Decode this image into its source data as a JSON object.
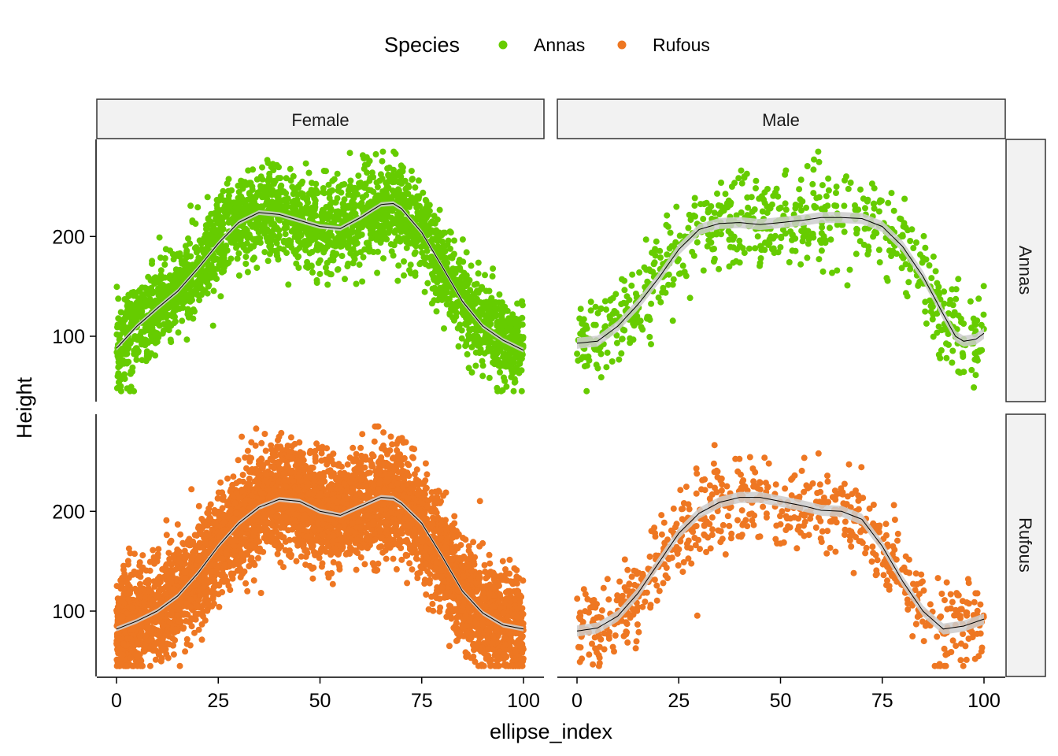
{
  "chart_data": {
    "type": "scatter",
    "title": "",
    "xlabel": "ellipse_index",
    "ylabel": "Height",
    "xlim": [
      0,
      100
    ],
    "ylim": [
      40,
      290
    ],
    "x_ticks": [
      0,
      25,
      50,
      75,
      100
    ],
    "y_ticks": [
      100,
      200
    ],
    "legend": {
      "title": "Species",
      "position": "top",
      "entries": [
        {
          "label": "Annas",
          "color": "#66CC00"
        },
        {
          "label": "Rufous",
          "color": "#EE7722"
        }
      ]
    },
    "facets": {
      "columns": [
        "Female",
        "Male"
      ],
      "rows": [
        "Annas",
        "Rufous"
      ]
    },
    "smooth_color": "#000000",
    "ribbon_color": "#cccccc",
    "panels": [
      {
        "row": "Annas",
        "col": "Female",
        "color": "#66CC00",
        "density": "high",
        "smooth": {
          "x": [
            0,
            5,
            10,
            15,
            20,
            25,
            30,
            35,
            40,
            45,
            50,
            55,
            60,
            65,
            68,
            70,
            75,
            80,
            85,
            90,
            95,
            100
          ],
          "y": [
            88,
            110,
            128,
            145,
            168,
            193,
            214,
            224,
            222,
            216,
            210,
            208,
            219,
            232,
            233,
            228,
            204,
            170,
            135,
            110,
            96,
            86
          ]
        },
        "spread": 30
      },
      {
        "row": "Annas",
        "col": "Male",
        "color": "#66CC00",
        "density": "medium",
        "smooth": {
          "x": [
            0,
            5,
            10,
            15,
            20,
            25,
            30,
            35,
            40,
            45,
            50,
            55,
            60,
            65,
            70,
            75,
            80,
            85,
            90,
            93,
            95,
            98,
            100
          ],
          "y": [
            93,
            95,
            110,
            132,
            158,
            187,
            207,
            213,
            214,
            212,
            214,
            216,
            219,
            219,
            218,
            210,
            190,
            160,
            122,
            100,
            95,
            97,
            103
          ]
        },
        "spread": 30
      },
      {
        "row": "Rufous",
        "col": "Female",
        "color": "#EE7722",
        "density": "very-high",
        "smooth": {
          "x": [
            0,
            5,
            10,
            15,
            20,
            25,
            30,
            35,
            40,
            45,
            50,
            55,
            60,
            65,
            68,
            70,
            75,
            80,
            85,
            90,
            95,
            100
          ],
          "y": [
            82,
            90,
            100,
            115,
            138,
            165,
            188,
            204,
            212,
            210,
            200,
            196,
            205,
            214,
            213,
            208,
            188,
            155,
            120,
            98,
            86,
            82
          ]
        },
        "spread": 34
      },
      {
        "row": "Rufous",
        "col": "Male",
        "color": "#EE7722",
        "density": "medium",
        "smooth": {
          "x": [
            0,
            5,
            10,
            15,
            20,
            25,
            30,
            35,
            40,
            45,
            50,
            55,
            60,
            65,
            70,
            75,
            80,
            85,
            90,
            95,
            100
          ],
          "y": [
            80,
            83,
            95,
            118,
            148,
            178,
            198,
            209,
            214,
            214,
            210,
            206,
            201,
            200,
            192,
            165,
            130,
            100,
            82,
            85,
            92
          ]
        },
        "spread": 28
      }
    ]
  }
}
